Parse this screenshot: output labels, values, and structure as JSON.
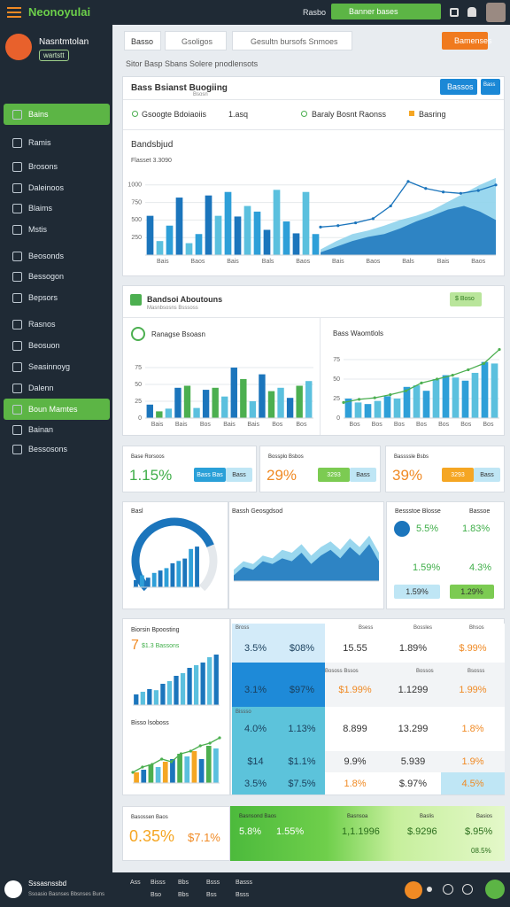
{
  "topbar": {
    "brand": "Neonoyulai",
    "link": "Rasbo",
    "dropdown": "Banner bases"
  },
  "sidebar": {
    "user": "Nasntmtolan",
    "badge": "wartstt",
    "items": [
      "Bains",
      "Ramis",
      "Brosons",
      "Daleinoos",
      "Blaims",
      "Mstis",
      "Beosonds",
      "Bessogon",
      "Bepsors",
      "Rasnos",
      "Beosuon",
      "Seasinnoyg",
      "Dalenn",
      "Boun Mamtes",
      "Bainan",
      "Bessosons"
    ]
  },
  "header": {
    "tab": "Basso",
    "search": "Gsoligos",
    "filter": "Gesultn bursofs Snmoes",
    "button": "Bamenses"
  },
  "breadcrumb": "Sitor Basp Sbans Solere pnodlensots",
  "overview": {
    "title": "Bass Bsianst Buogiing",
    "subtitle": "Bsosn",
    "buttons": [
      "Bassos",
      "Bass"
    ],
    "filters": [
      "Gsoogte Bdoiaoiis",
      "1.asq",
      "Baraly Bosnt Raonss",
      "Basring"
    ],
    "chart": {
      "title": "Bandsbjud",
      "subtitle": "Flasset 3.3090",
      "ylim": [
        0,
        1250
      ],
      "yticks": [
        250,
        500,
        750,
        1000
      ],
      "xlabels": [
        "Bais",
        "Baos",
        "Bais",
        "Bals",
        "Baos",
        "Bais",
        "Baos",
        "Bals",
        "Bais",
        "Baos"
      ],
      "bars": {
        "colors": [
          "#1b75bc",
          "#5bc0de",
          "#2e9fd8"
        ],
        "values": [
          560,
          200,
          420,
          820,
          170,
          300,
          850,
          560,
          900,
          550,
          700,
          620,
          360,
          930,
          480,
          310,
          900,
          300
        ]
      },
      "areas": [
        {
          "color": "#8fd3ec",
          "values": [
            80,
            200,
            300,
            350,
            420,
            500,
            560,
            640,
            760,
            880,
            1000,
            1100
          ]
        },
        {
          "color": "#1b75bc",
          "values": [
            40,
            120,
            200,
            260,
            300,
            380,
            480,
            560,
            650,
            700,
            620,
            500
          ]
        }
      ],
      "line": {
        "color": "#1b75bc",
        "values": [
          400,
          420,
          460,
          520,
          700,
          1050,
          950,
          900,
          880,
          920,
          1000
        ]
      }
    }
  },
  "analytics": {
    "title": "Bandsoi Aboutouns",
    "subtitle": "Masnbsosns Bsssoss",
    "button": "$ Boso",
    "left": {
      "title": "Ranagse Bsoasn",
      "chart": {
        "ylim": [
          0,
          100
        ],
        "yticks": [
          0,
          25,
          50,
          75
        ],
        "xlabels": [
          "Bais",
          "Bais",
          "Bos",
          "Bais",
          "Bais",
          "Bos",
          "Bos"
        ],
        "bars": {
          "colors": [
            "#1b75bc",
            "#4caf50",
            "#5bc0de"
          ],
          "values": [
            20,
            10,
            14,
            45,
            48,
            15,
            42,
            45,
            32,
            75,
            58,
            25,
            65,
            40,
            45,
            30,
            48,
            55
          ]
        }
      }
    },
    "right": {
      "title": "Bass Waomtlols",
      "chart": {
        "ylim": [
          0,
          100
        ],
        "yticks": [
          0,
          25,
          50,
          75
        ],
        "xlabels": [
          "Bos",
          "Bos",
          "Bos",
          "Bos",
          "Bos",
          "Bos",
          "Bos"
        ],
        "bars": {
          "colors": [
            "#2e9fd8",
            "#5bc0de"
          ],
          "values": [
            25,
            20,
            18,
            22,
            28,
            25,
            40,
            42,
            35,
            50,
            55,
            52,
            48,
            58,
            72,
            70
          ]
        },
        "line": {
          "color": "#4caf50",
          "values": [
            20,
            24,
            26,
            30,
            35,
            45,
            50,
            55,
            62,
            70,
            88
          ]
        }
      }
    }
  },
  "kpis": [
    {
      "label": "Base Rorsoos",
      "value": "1.15%",
      "tags": [
        "Bass Bas",
        "Bass"
      ]
    },
    {
      "label": "Bossplo Bsbos",
      "value": "29%",
      "tags": [
        "3293",
        "Bass"
      ]
    },
    {
      "label": "Bassssle Bsbs",
      "value": "39%",
      "tags": [
        "3293",
        "Bass"
      ]
    }
  ],
  "summary": {
    "gauge": {
      "title": "Basl",
      "value": 75,
      "max": 100,
      "color": "#1b75bc",
      "chart": {
        "ylim": [
          0,
          100
        ],
        "bars": {
          "colors": [
            "#1b75bc",
            "#2e9fd8"
          ],
          "values": [
            15,
            25,
            20,
            30,
            35,
            40,
            50,
            55,
            60,
            80,
            85
          ]
        }
      }
    },
    "trend": {
      "title": "Bassh Geosgdsod",
      "chart": {
        "ylim": [
          0,
          100
        ],
        "areas": [
          {
            "color": "#8fd3ec",
            "values": [
              20,
              35,
              30,
              45,
              40,
              55,
              50,
              65,
              45,
              60,
              70,
              55,
              75,
              60,
              80,
              50
            ]
          },
          {
            "color": "#1b75bc",
            "values": [
              10,
              25,
              20,
              35,
              30,
              40,
              35,
              50,
              30,
              45,
              55,
              40,
              60,
              45,
              65,
              35
            ]
          }
        ]
      }
    },
    "stats": {
      "labels": [
        "Bessstoe Blosse",
        "Bassoe"
      ],
      "values": [
        "5.5%",
        "1.83%",
        "1.59%",
        "4.3%"
      ],
      "tags": [
        "1.59%",
        "1.29%"
      ]
    }
  },
  "report": {
    "title": "Biorsin Bpoosting",
    "big": "7",
    "big_label": "$1.3 Bassons",
    "chart": {
      "ylim": [
        0,
        100
      ],
      "bars": {
        "colors": [
          "#1b75bc",
          "#5bc0de"
        ],
        "values": [
          20,
          25,
          30,
          28,
          40,
          45,
          55,
          60,
          70,
          75,
          80,
          90,
          95
        ]
      }
    },
    "chart2_title": "Bisso lsoboss",
    "chart2": {
      "ylim": [
        0,
        100
      ],
      "bars": {
        "colors": [
          "#f5a623",
          "#1b75bc",
          "#4caf50",
          "#5bc0de"
        ],
        "values": [
          20,
          25,
          35,
          30,
          40,
          45,
          55,
          50,
          60,
          45,
          70,
          65
        ]
      },
      "line": {
        "color": "#4caf50",
        "values": [
          20,
          30,
          35,
          45,
          40,
          55,
          60,
          70,
          75,
          85
        ]
      }
    }
  },
  "table": {
    "labels": [
      "Bross",
      "Bsess",
      "Bossles",
      "Bhsos",
      "Bososs Bssos",
      "Bossos",
      "Bsosss",
      "Bissso"
    ],
    "rows": [
      [
        "3.5%",
        "$08%",
        "15.55",
        "1.89%",
        "$.99%"
      ],
      [
        "3.1%",
        "$97%",
        "$1.99%",
        "1.1299",
        "1.99%"
      ],
      [
        "4.0%",
        "1.13%",
        "8.899",
        "13.299",
        "1.8%"
      ],
      [
        "$14",
        "$1.1%",
        "9.9%",
        "5.939",
        "1.9%"
      ],
      [
        "3.5%",
        "$7.5%",
        "1.8%",
        "$.97%",
        "4.5%"
      ]
    ]
  },
  "totals": {
    "label": "Basossen Baos",
    "values": [
      "0.35%",
      "$7.1%"
    ],
    "panel_labels": [
      "Basnsond Baos",
      "Basnsoa",
      "Baslis",
      "Basios"
    ],
    "panel_values": [
      "5.8%",
      "1.55%",
      "1,1.1996",
      "$.9296",
      "$.95%",
      "08.5%"
    ]
  },
  "footer": {
    "brand": "Sssasnssbd",
    "tagline": "Ssoasio Basnses Bbsnses Buns",
    "links": [
      "Ass",
      "Bisss",
      "Bbs",
      "Bsss",
      "Basss",
      "Bso",
      "Bbs",
      "Bss",
      "Bsss"
    ]
  }
}
